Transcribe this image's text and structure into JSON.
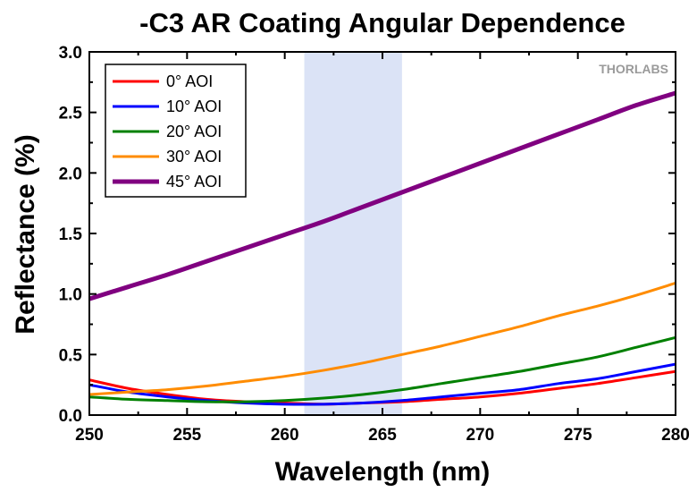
{
  "chart_data": {
    "type": "line",
    "title": "-C3 AR Coating Angular Dependence",
    "xlabel": "Wavelength (nm)",
    "ylabel": "Reflectance (%)",
    "xlim": [
      250,
      280
    ],
    "ylim": [
      0,
      3.0
    ],
    "x_ticks": [
      "250",
      "255",
      "260",
      "265",
      "270",
      "275",
      "280"
    ],
    "y_ticks": [
      "0.0",
      "0.5",
      "1.0",
      "1.5",
      "2.0",
      "2.5",
      "3.0"
    ],
    "grid": false,
    "legend_position": "top-left",
    "logo": "THORLABS",
    "highlight_band": {
      "x_start": 261,
      "x_end": 266,
      "color": "#dbe3f6"
    },
    "x": [
      250,
      252,
      254,
      256,
      258,
      260,
      262,
      264,
      266,
      268,
      270,
      272,
      274,
      276,
      278,
      280
    ],
    "series": [
      {
        "name": "0° AOI",
        "color": "#ff0000",
        "values": [
          0.29,
          0.22,
          0.17,
          0.13,
          0.11,
          0.1,
          0.09,
          0.1,
          0.11,
          0.13,
          0.15,
          0.18,
          0.22,
          0.26,
          0.31,
          0.36
        ]
      },
      {
        "name": "10° AOI",
        "color": "#0000ff",
        "values": [
          0.25,
          0.19,
          0.15,
          0.12,
          0.1,
          0.09,
          0.09,
          0.1,
          0.12,
          0.15,
          0.18,
          0.21,
          0.26,
          0.3,
          0.36,
          0.42
        ]
      },
      {
        "name": "20° AOI",
        "color": "#008000",
        "values": [
          0.15,
          0.13,
          0.12,
          0.11,
          0.11,
          0.12,
          0.14,
          0.17,
          0.21,
          0.26,
          0.31,
          0.36,
          0.42,
          0.48,
          0.56,
          0.64
        ]
      },
      {
        "name": "30° AOI",
        "color": "#ff8c00",
        "values": [
          0.17,
          0.19,
          0.21,
          0.24,
          0.28,
          0.32,
          0.37,
          0.43,
          0.5,
          0.57,
          0.65,
          0.73,
          0.82,
          0.9,
          0.99,
          1.09
        ]
      },
      {
        "name": "45° AOI",
        "color": "#800080",
        "values": [
          0.96,
          1.06,
          1.16,
          1.27,
          1.38,
          1.49,
          1.6,
          1.72,
          1.84,
          1.96,
          2.08,
          2.2,
          2.32,
          2.44,
          2.56,
          2.66
        ]
      }
    ]
  }
}
